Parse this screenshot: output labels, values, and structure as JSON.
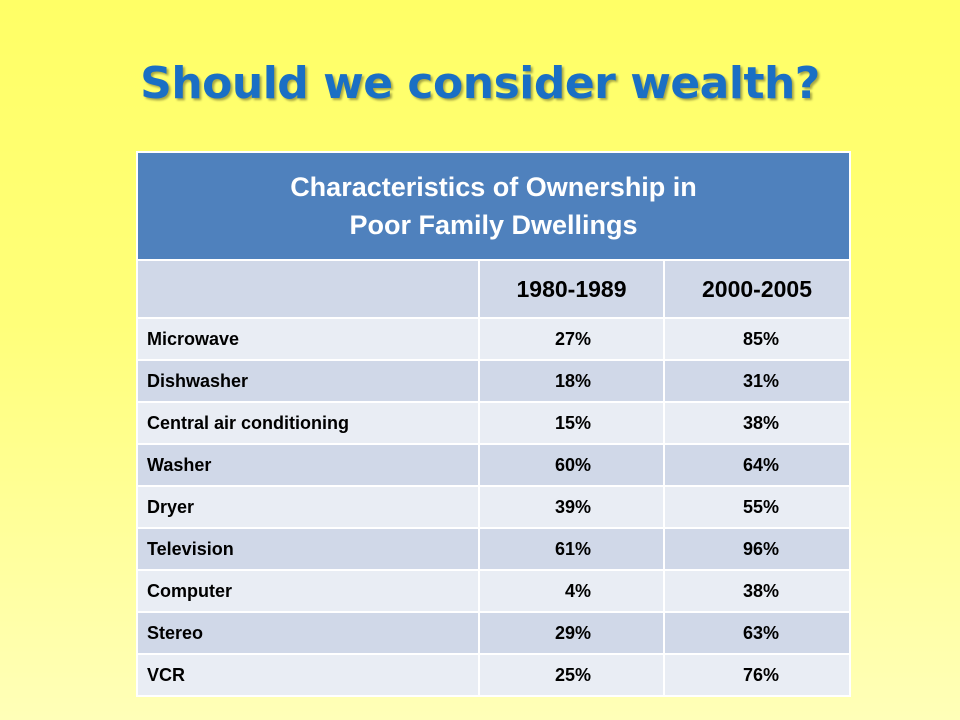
{
  "slide": {
    "title": "Should we consider wealth?"
  },
  "table": {
    "caption_line1": "Characteristics of Ownership in",
    "caption_line2": "Poor Family Dwellings",
    "columns": [
      "",
      "1980-1989",
      "2000-2005"
    ],
    "rows": [
      {
        "item": "Microwave",
        "v1980": "27%",
        "v2000": "85%"
      },
      {
        "item": "Dishwasher",
        "v1980": "18%",
        "v2000": "31%"
      },
      {
        "item": "Central air conditioning",
        "v1980": "15%",
        "v2000": "38%"
      },
      {
        "item": "Washer",
        "v1980": "60%",
        "v2000": "64%"
      },
      {
        "item": "Dryer",
        "v1980": "39%",
        "v2000": "55%"
      },
      {
        "item": "Television",
        "v1980": "61%",
        "v2000": "96%"
      },
      {
        "item": "Computer",
        "v1980": "4%",
        "v2000": "38%"
      },
      {
        "item": "Stereo",
        "v1980": "29%",
        "v2000": "63%"
      },
      {
        "item": "VCR",
        "v1980": "25%",
        "v2000": "76%"
      }
    ]
  },
  "colors": {
    "title": "#1a6fc4",
    "header_blue": "#4f81bd",
    "row_light": "#e9edf4",
    "row_dark": "#d0d8e8",
    "background_top": "#ffff66",
    "background_bottom": "#ffffb8"
  }
}
